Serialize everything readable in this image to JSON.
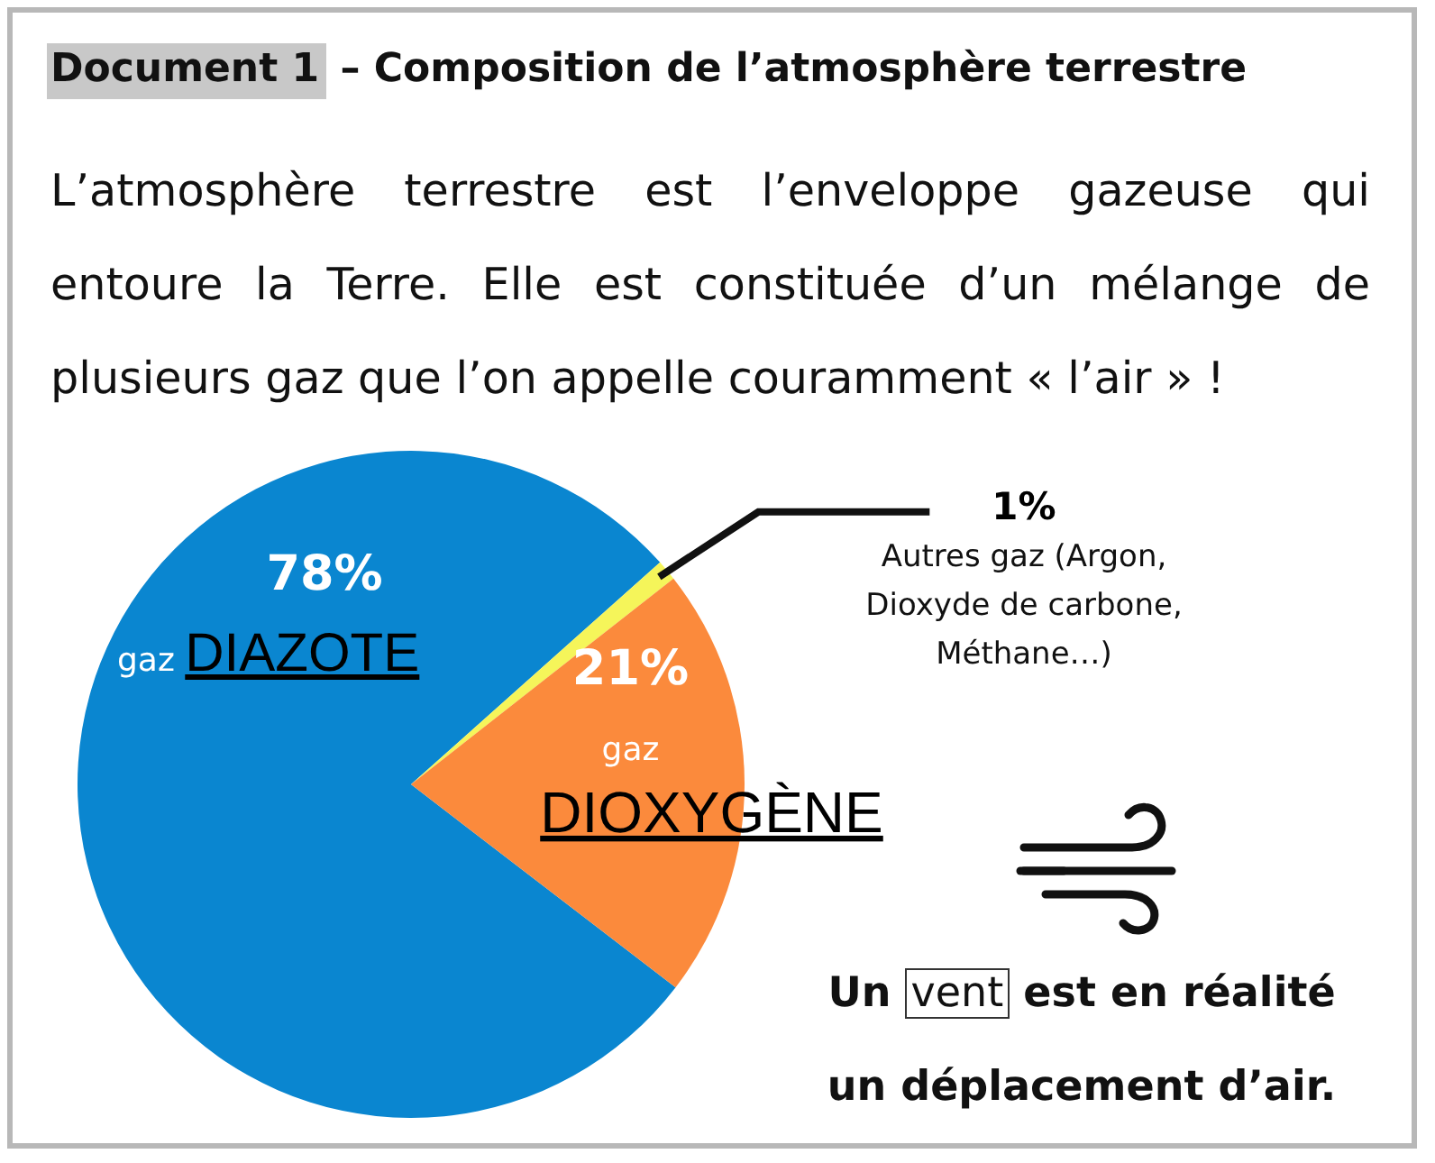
{
  "chart_data": {
    "type": "pie",
    "title": "Document 1 – Composition de l’atmosphère terrestre",
    "subtitle": "L’atmosphère terrestre est l’enveloppe gazeuse qui entoure la Terre. Elle est constituée d’un mélange de plusieurs gaz que l’on appelle couramment « l’air » !",
    "categories": [
      "gaz DIAZOTE",
      "Autres gaz (Argon, Dioxyde de carbone, Méthane…)",
      "gaz DIOXYGÈNE"
    ],
    "values": [
      78,
      1,
      21
    ],
    "value_labels": [
      "78%",
      "1%",
      "21%"
    ],
    "colors": [
      "#0a86d0",
      "#f5f55a",
      "#fb8a3c"
    ],
    "annotations": [
      "Un vent est en réalité un déplacement d’air."
    ]
  }
}
